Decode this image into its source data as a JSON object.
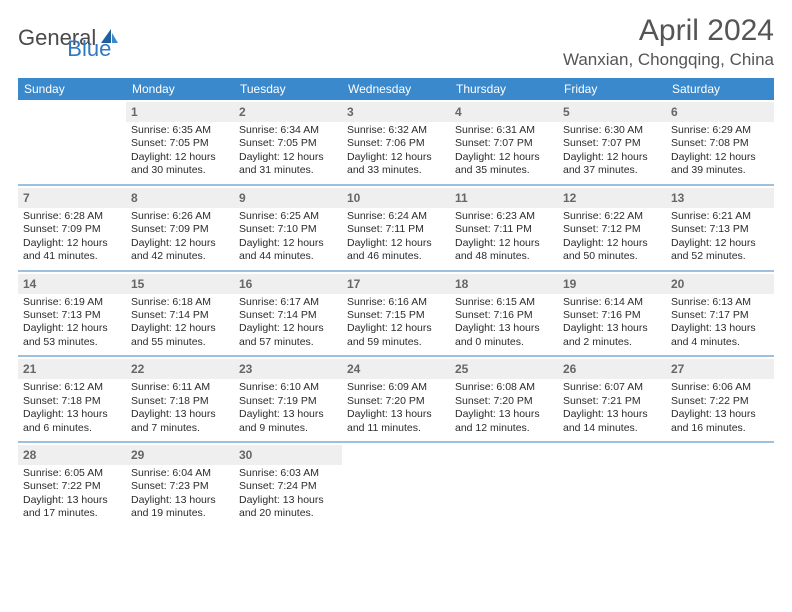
{
  "brand": {
    "part1": "General",
    "part2": "Blue"
  },
  "title": "April 2024",
  "location": "Wanxian, Chongqing, China",
  "colors": {
    "header_bg": "#3a89cc",
    "week_divider": "#9ec0df",
    "daynum_bg": "#efefef",
    "text": "#333333",
    "brand_blue": "#2f78c2"
  },
  "layout": {
    "columns": 7,
    "cell_fontsize_pt": 8,
    "header_fontsize_pt": 9
  },
  "weekdays": [
    "Sunday",
    "Monday",
    "Tuesday",
    "Wednesday",
    "Thursday",
    "Friday",
    "Saturday"
  ],
  "weeks": [
    [
      {
        "n": "",
        "sr": "",
        "ss": "",
        "dl1": "",
        "dl2": ""
      },
      {
        "n": "1",
        "sr": "Sunrise: 6:35 AM",
        "ss": "Sunset: 7:05 PM",
        "dl1": "Daylight: 12 hours",
        "dl2": "and 30 minutes."
      },
      {
        "n": "2",
        "sr": "Sunrise: 6:34 AM",
        "ss": "Sunset: 7:05 PM",
        "dl1": "Daylight: 12 hours",
        "dl2": "and 31 minutes."
      },
      {
        "n": "3",
        "sr": "Sunrise: 6:32 AM",
        "ss": "Sunset: 7:06 PM",
        "dl1": "Daylight: 12 hours",
        "dl2": "and 33 minutes."
      },
      {
        "n": "4",
        "sr": "Sunrise: 6:31 AM",
        "ss": "Sunset: 7:07 PM",
        "dl1": "Daylight: 12 hours",
        "dl2": "and 35 minutes."
      },
      {
        "n": "5",
        "sr": "Sunrise: 6:30 AM",
        "ss": "Sunset: 7:07 PM",
        "dl1": "Daylight: 12 hours",
        "dl2": "and 37 minutes."
      },
      {
        "n": "6",
        "sr": "Sunrise: 6:29 AM",
        "ss": "Sunset: 7:08 PM",
        "dl1": "Daylight: 12 hours",
        "dl2": "and 39 minutes."
      }
    ],
    [
      {
        "n": "7",
        "sr": "Sunrise: 6:28 AM",
        "ss": "Sunset: 7:09 PM",
        "dl1": "Daylight: 12 hours",
        "dl2": "and 41 minutes."
      },
      {
        "n": "8",
        "sr": "Sunrise: 6:26 AM",
        "ss": "Sunset: 7:09 PM",
        "dl1": "Daylight: 12 hours",
        "dl2": "and 42 minutes."
      },
      {
        "n": "9",
        "sr": "Sunrise: 6:25 AM",
        "ss": "Sunset: 7:10 PM",
        "dl1": "Daylight: 12 hours",
        "dl2": "and 44 minutes."
      },
      {
        "n": "10",
        "sr": "Sunrise: 6:24 AM",
        "ss": "Sunset: 7:11 PM",
        "dl1": "Daylight: 12 hours",
        "dl2": "and 46 minutes."
      },
      {
        "n": "11",
        "sr": "Sunrise: 6:23 AM",
        "ss": "Sunset: 7:11 PM",
        "dl1": "Daylight: 12 hours",
        "dl2": "and 48 minutes."
      },
      {
        "n": "12",
        "sr": "Sunrise: 6:22 AM",
        "ss": "Sunset: 7:12 PM",
        "dl1": "Daylight: 12 hours",
        "dl2": "and 50 minutes."
      },
      {
        "n": "13",
        "sr": "Sunrise: 6:21 AM",
        "ss": "Sunset: 7:13 PM",
        "dl1": "Daylight: 12 hours",
        "dl2": "and 52 minutes."
      }
    ],
    [
      {
        "n": "14",
        "sr": "Sunrise: 6:19 AM",
        "ss": "Sunset: 7:13 PM",
        "dl1": "Daylight: 12 hours",
        "dl2": "and 53 minutes."
      },
      {
        "n": "15",
        "sr": "Sunrise: 6:18 AM",
        "ss": "Sunset: 7:14 PM",
        "dl1": "Daylight: 12 hours",
        "dl2": "and 55 minutes."
      },
      {
        "n": "16",
        "sr": "Sunrise: 6:17 AM",
        "ss": "Sunset: 7:14 PM",
        "dl1": "Daylight: 12 hours",
        "dl2": "and 57 minutes."
      },
      {
        "n": "17",
        "sr": "Sunrise: 6:16 AM",
        "ss": "Sunset: 7:15 PM",
        "dl1": "Daylight: 12 hours",
        "dl2": "and 59 minutes."
      },
      {
        "n": "18",
        "sr": "Sunrise: 6:15 AM",
        "ss": "Sunset: 7:16 PM",
        "dl1": "Daylight: 13 hours",
        "dl2": "and 0 minutes."
      },
      {
        "n": "19",
        "sr": "Sunrise: 6:14 AM",
        "ss": "Sunset: 7:16 PM",
        "dl1": "Daylight: 13 hours",
        "dl2": "and 2 minutes."
      },
      {
        "n": "20",
        "sr": "Sunrise: 6:13 AM",
        "ss": "Sunset: 7:17 PM",
        "dl1": "Daylight: 13 hours",
        "dl2": "and 4 minutes."
      }
    ],
    [
      {
        "n": "21",
        "sr": "Sunrise: 6:12 AM",
        "ss": "Sunset: 7:18 PM",
        "dl1": "Daylight: 13 hours",
        "dl2": "and 6 minutes."
      },
      {
        "n": "22",
        "sr": "Sunrise: 6:11 AM",
        "ss": "Sunset: 7:18 PM",
        "dl1": "Daylight: 13 hours",
        "dl2": "and 7 minutes."
      },
      {
        "n": "23",
        "sr": "Sunrise: 6:10 AM",
        "ss": "Sunset: 7:19 PM",
        "dl1": "Daylight: 13 hours",
        "dl2": "and 9 minutes."
      },
      {
        "n": "24",
        "sr": "Sunrise: 6:09 AM",
        "ss": "Sunset: 7:20 PM",
        "dl1": "Daylight: 13 hours",
        "dl2": "and 11 minutes."
      },
      {
        "n": "25",
        "sr": "Sunrise: 6:08 AM",
        "ss": "Sunset: 7:20 PM",
        "dl1": "Daylight: 13 hours",
        "dl2": "and 12 minutes."
      },
      {
        "n": "26",
        "sr": "Sunrise: 6:07 AM",
        "ss": "Sunset: 7:21 PM",
        "dl1": "Daylight: 13 hours",
        "dl2": "and 14 minutes."
      },
      {
        "n": "27",
        "sr": "Sunrise: 6:06 AM",
        "ss": "Sunset: 7:22 PM",
        "dl1": "Daylight: 13 hours",
        "dl2": "and 16 minutes."
      }
    ],
    [
      {
        "n": "28",
        "sr": "Sunrise: 6:05 AM",
        "ss": "Sunset: 7:22 PM",
        "dl1": "Daylight: 13 hours",
        "dl2": "and 17 minutes."
      },
      {
        "n": "29",
        "sr": "Sunrise: 6:04 AM",
        "ss": "Sunset: 7:23 PM",
        "dl1": "Daylight: 13 hours",
        "dl2": "and 19 minutes."
      },
      {
        "n": "30",
        "sr": "Sunrise: 6:03 AM",
        "ss": "Sunset: 7:24 PM",
        "dl1": "Daylight: 13 hours",
        "dl2": "and 20 minutes."
      },
      {
        "n": "",
        "sr": "",
        "ss": "",
        "dl1": "",
        "dl2": ""
      },
      {
        "n": "",
        "sr": "",
        "ss": "",
        "dl1": "",
        "dl2": ""
      },
      {
        "n": "",
        "sr": "",
        "ss": "",
        "dl1": "",
        "dl2": ""
      },
      {
        "n": "",
        "sr": "",
        "ss": "",
        "dl1": "",
        "dl2": ""
      }
    ]
  ]
}
